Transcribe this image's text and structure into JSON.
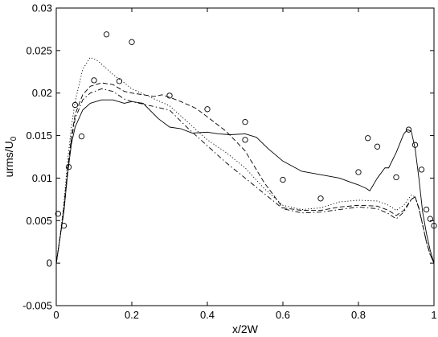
{
  "chart_data": {
    "type": "line",
    "xlabel": "x/2W",
    "ylabel": "urms/U",
    "ylabel_subscript": "0",
    "xlim": [
      0,
      1
    ],
    "ylim": [
      -0.005,
      0.03
    ],
    "x_ticks": [
      0,
      0.2,
      0.4,
      0.6,
      0.8,
      1
    ],
    "x_tick_labels": [
      "0",
      "0.2",
      "0.4",
      "0.6",
      "0.8",
      "1"
    ],
    "y_ticks": [
      -0.005,
      0,
      0.005,
      0.01,
      0.015,
      0.02,
      0.025,
      0.03
    ],
    "y_tick_labels": [
      "-0.005",
      "0",
      "0.005",
      "0.01",
      "0.015",
      "0.02",
      "0.025",
      "0.03"
    ],
    "grid": false,
    "series": [
      {
        "style": "solid",
        "color": "#000000",
        "points": [
          [
            0,
            0
          ],
          [
            0.01,
            0.003
          ],
          [
            0.02,
            0.006
          ],
          [
            0.03,
            0.0105
          ],
          [
            0.04,
            0.014
          ],
          [
            0.05,
            0.016
          ],
          [
            0.07,
            0.018
          ],
          [
            0.09,
            0.0188
          ],
          [
            0.12,
            0.0192
          ],
          [
            0.15,
            0.0192
          ],
          [
            0.18,
            0.0188
          ],
          [
            0.2,
            0.019
          ],
          [
            0.23,
            0.0188
          ],
          [
            0.27,
            0.017
          ],
          [
            0.3,
            0.016
          ],
          [
            0.33,
            0.0158
          ],
          [
            0.36,
            0.0153
          ],
          [
            0.4,
            0.0154
          ],
          [
            0.43,
            0.0152
          ],
          [
            0.46,
            0.0151
          ],
          [
            0.5,
            0.0152
          ],
          [
            0.53,
            0.0148
          ],
          [
            0.56,
            0.0135
          ],
          [
            0.6,
            0.012
          ],
          [
            0.65,
            0.0108
          ],
          [
            0.7,
            0.0104
          ],
          [
            0.75,
            0.01
          ],
          [
            0.78,
            0.0095
          ],
          [
            0.8,
            0.0092
          ],
          [
            0.82,
            0.0088
          ],
          [
            0.83,
            0.0085
          ],
          [
            0.85,
            0.01
          ],
          [
            0.87,
            0.0112
          ],
          [
            0.88,
            0.0112
          ],
          [
            0.9,
            0.013
          ],
          [
            0.92,
            0.0152
          ],
          [
            0.93,
            0.0157
          ],
          [
            0.94,
            0.0155
          ],
          [
            0.95,
            0.0135
          ],
          [
            0.96,
            0.01
          ],
          [
            0.97,
            0.006
          ],
          [
            0.98,
            0.0035
          ],
          [
            0.99,
            0.0015
          ],
          [
            1,
            0
          ]
        ]
      },
      {
        "style": "dotted",
        "color": "#000000",
        "points": [
          [
            0,
            0
          ],
          [
            0.01,
            0.003
          ],
          [
            0.02,
            0.007
          ],
          [
            0.03,
            0.012
          ],
          [
            0.04,
            0.016
          ],
          [
            0.05,
            0.019
          ],
          [
            0.07,
            0.0228
          ],
          [
            0.09,
            0.0242
          ],
          [
            0.11,
            0.0238
          ],
          [
            0.13,
            0.023
          ],
          [
            0.15,
            0.0222
          ],
          [
            0.18,
            0.0212
          ],
          [
            0.2,
            0.0205
          ],
          [
            0.25,
            0.0195
          ],
          [
            0.3,
            0.0185
          ],
          [
            0.35,
            0.0165
          ],
          [
            0.4,
            0.0145
          ],
          [
            0.45,
            0.013
          ],
          [
            0.5,
            0.0112
          ],
          [
            0.55,
            0.0088
          ],
          [
            0.6,
            0.0068
          ],
          [
            0.65,
            0.0063
          ],
          [
            0.7,
            0.0065
          ],
          [
            0.75,
            0.0072
          ],
          [
            0.8,
            0.0074
          ],
          [
            0.85,
            0.0073
          ],
          [
            0.88,
            0.0068
          ],
          [
            0.9,
            0.0062
          ],
          [
            0.92,
            0.0068
          ],
          [
            0.94,
            0.008
          ],
          [
            0.95,
            0.0078
          ],
          [
            0.96,
            0.0065
          ],
          [
            0.97,
            0.0045
          ],
          [
            0.98,
            0.0025
          ],
          [
            0.99,
            0.001
          ],
          [
            1,
            0
          ]
        ]
      },
      {
        "style": "dashed",
        "color": "#000000",
        "points": [
          [
            0,
            0
          ],
          [
            0.01,
            0.003
          ],
          [
            0.02,
            0.0065
          ],
          [
            0.03,
            0.011
          ],
          [
            0.04,
            0.0148
          ],
          [
            0.05,
            0.0175
          ],
          [
            0.07,
            0.0198
          ],
          [
            0.09,
            0.0208
          ],
          [
            0.12,
            0.0212
          ],
          [
            0.15,
            0.021
          ],
          [
            0.18,
            0.0202
          ],
          [
            0.2,
            0.02
          ],
          [
            0.23,
            0.0198
          ],
          [
            0.26,
            0.0196
          ],
          [
            0.28,
            0.0198
          ],
          [
            0.3,
            0.0195
          ],
          [
            0.33,
            0.019
          ],
          [
            0.37,
            0.0182
          ],
          [
            0.4,
            0.0172
          ],
          [
            0.45,
            0.0155
          ],
          [
            0.5,
            0.0132
          ],
          [
            0.55,
            0.0095
          ],
          [
            0.6,
            0.0065
          ],
          [
            0.65,
            0.0062
          ],
          [
            0.7,
            0.0062
          ],
          [
            0.75,
            0.0066
          ],
          [
            0.8,
            0.0068
          ],
          [
            0.85,
            0.0067
          ],
          [
            0.88,
            0.0062
          ],
          [
            0.9,
            0.0056
          ],
          [
            0.92,
            0.0062
          ],
          [
            0.94,
            0.0075
          ],
          [
            0.95,
            0.0078
          ],
          [
            0.96,
            0.0065
          ],
          [
            0.97,
            0.0045
          ],
          [
            0.98,
            0.0025
          ],
          [
            0.99,
            0.001
          ],
          [
            1,
            0
          ]
        ]
      },
      {
        "style": "dashdot",
        "color": "#000000",
        "points": [
          [
            0,
            0
          ],
          [
            0.01,
            0.003
          ],
          [
            0.02,
            0.006
          ],
          [
            0.03,
            0.0105
          ],
          [
            0.04,
            0.0145
          ],
          [
            0.05,
            0.017
          ],
          [
            0.07,
            0.0192
          ],
          [
            0.09,
            0.02
          ],
          [
            0.12,
            0.0205
          ],
          [
            0.15,
            0.0202
          ],
          [
            0.18,
            0.0193
          ],
          [
            0.2,
            0.019
          ],
          [
            0.25,
            0.0185
          ],
          [
            0.3,
            0.018
          ],
          [
            0.35,
            0.0158
          ],
          [
            0.4,
            0.0138
          ],
          [
            0.45,
            0.0118
          ],
          [
            0.5,
            0.01
          ],
          [
            0.55,
            0.0082
          ],
          [
            0.6,
            0.0064
          ],
          [
            0.65,
            0.0059
          ],
          [
            0.7,
            0.006
          ],
          [
            0.75,
            0.0063
          ],
          [
            0.8,
            0.0066
          ],
          [
            0.85,
            0.0064
          ],
          [
            0.88,
            0.0058
          ],
          [
            0.9,
            0.0052
          ],
          [
            0.92,
            0.006
          ],
          [
            0.94,
            0.0075
          ],
          [
            0.95,
            0.0078
          ],
          [
            0.96,
            0.0064
          ],
          [
            0.97,
            0.0045
          ],
          [
            0.98,
            0.0025
          ],
          [
            0.99,
            0.001
          ],
          [
            1,
            0
          ]
        ]
      },
      {
        "style": "markers",
        "marker": "circle",
        "color": "#000000",
        "points": [
          [
            0.005,
            0.0058
          ],
          [
            0.02,
            0.0044
          ],
          [
            0.033,
            0.0113
          ],
          [
            0.05,
            0.0186
          ],
          [
            0.067,
            0.0149
          ],
          [
            0.1,
            0.0215
          ],
          [
            0.133,
            0.0269
          ],
          [
            0.167,
            0.0214
          ],
          [
            0.2,
            0.026
          ],
          [
            0.3,
            0.0197
          ],
          [
            0.4,
            0.0181
          ],
          [
            0.5,
            0.0166
          ],
          [
            0.5,
            0.0145
          ],
          [
            0.6,
            0.0098
          ],
          [
            0.7,
            0.0076
          ],
          [
            0.8,
            0.0107
          ],
          [
            0.825,
            0.0147
          ],
          [
            0.85,
            0.0137
          ],
          [
            0.9,
            0.0101
          ],
          [
            0.933,
            0.0157
          ],
          [
            0.95,
            0.0139
          ],
          [
            0.967,
            0.011
          ],
          [
            0.98,
            0.0063
          ],
          [
            0.99,
            0.0052
          ],
          [
            1,
            0.0044
          ]
        ]
      }
    ]
  }
}
